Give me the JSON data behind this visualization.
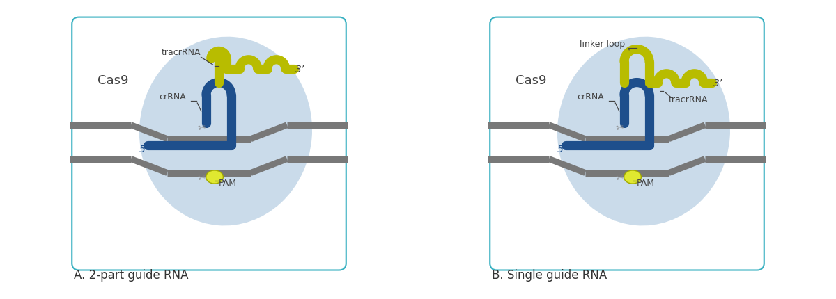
{
  "title_a": "A. 2-part guide RNA",
  "title_b": "B. Single guide RNA",
  "cas9_label": "Cas9",
  "crrna_label": "crRNA",
  "tracrrna_label_a": "tracrRNA",
  "tracrrna_label_b": "tracrRNA",
  "linker_loop_label": "linker loop",
  "prime5_label": "5’",
  "prime3_label": "3’",
  "pam_label": "PAM",
  "color_blue": "#1e4f8c",
  "color_yellow_green": "#b8bc00",
  "color_gray": "#787878",
  "color_bg_blob": "#c5d8e8",
  "color_border": "#35afc0",
  "color_white": "#ffffff",
  "color_pam_yellow": "#e0e830",
  "color_scissors": "#8a8a8a",
  "color_label": "#444444"
}
